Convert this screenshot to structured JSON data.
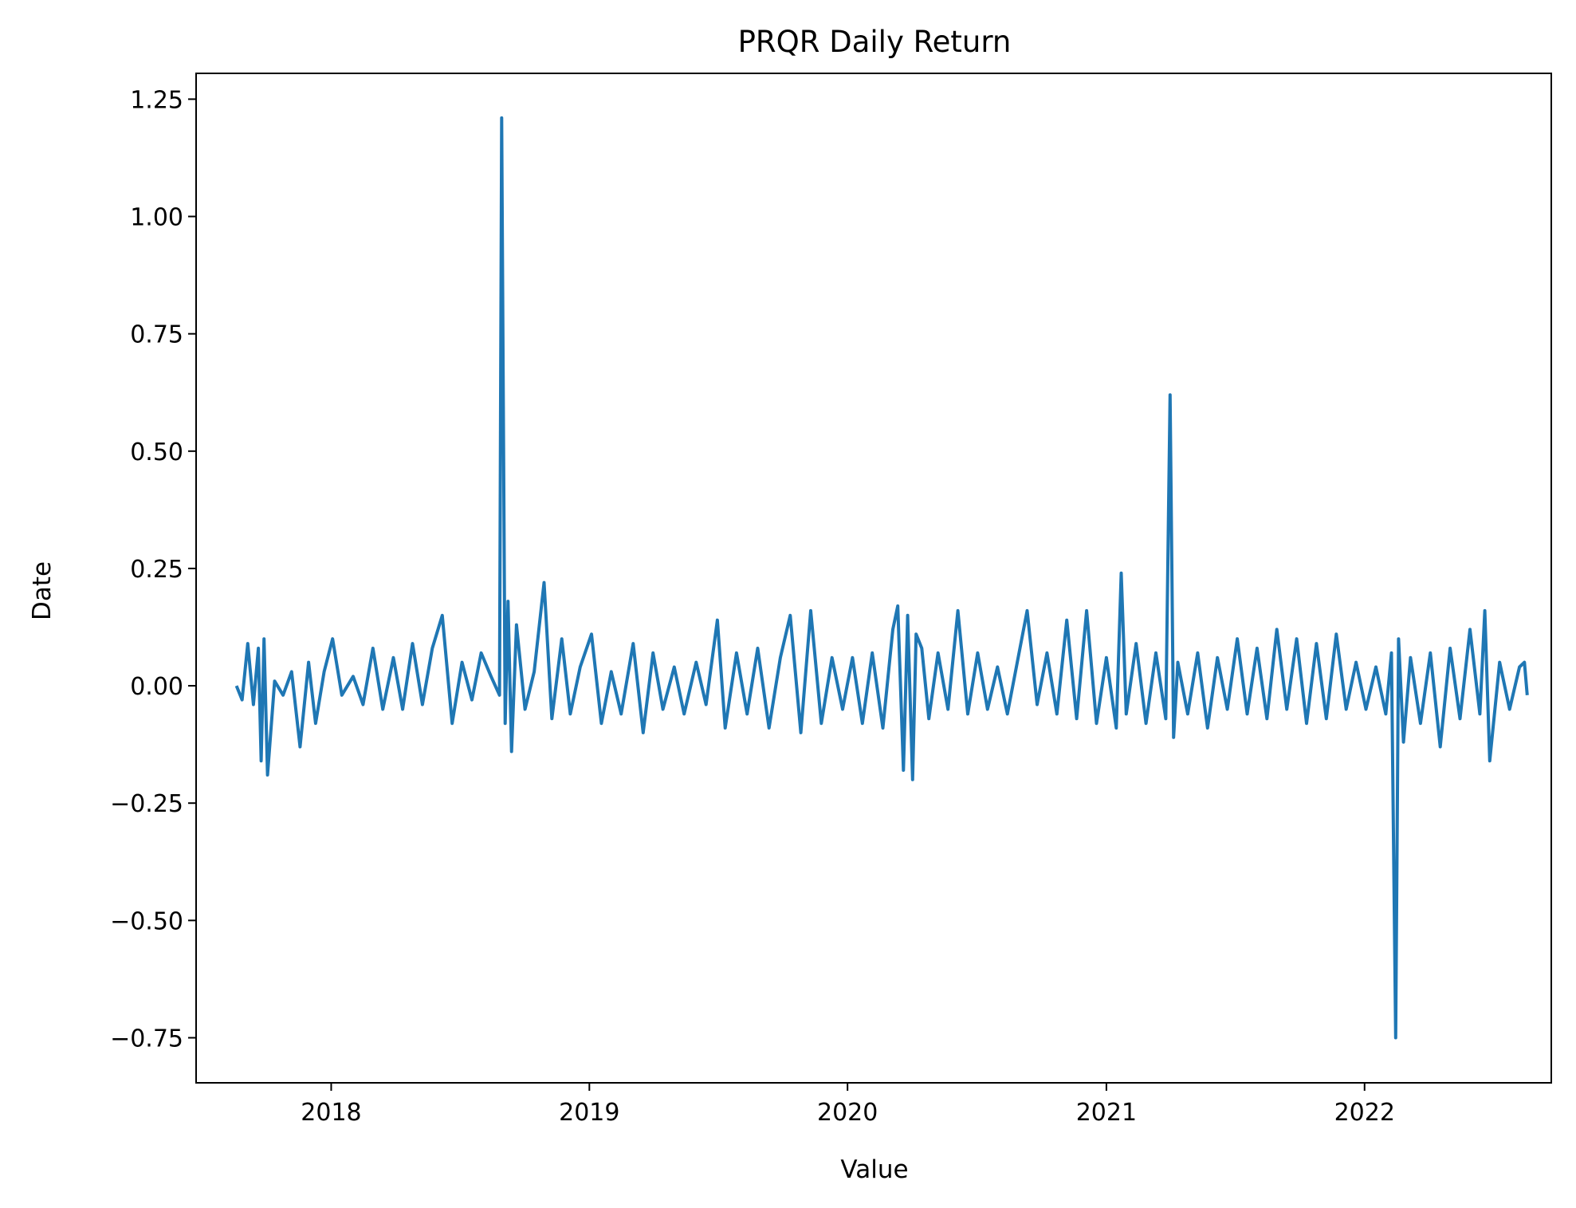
{
  "chart_data": {
    "type": "line",
    "title": "PRQR Daily Return",
    "xlabel": "Value",
    "ylabel": "Date",
    "x_ticks": [
      "2018",
      "2019",
      "2020",
      "2021",
      "2022"
    ],
    "y_ticks": [
      "−0.75",
      "−0.50",
      "−0.25",
      "0.00",
      "0.25",
      "0.50",
      "0.75",
      "1.00",
      "1.25"
    ],
    "y_tick_values": [
      -0.75,
      -0.5,
      -0.25,
      0.0,
      0.25,
      0.5,
      0.75,
      1.0,
      1.25
    ],
    "xlim": [
      "2017-06-24",
      "2022-09-22"
    ],
    "ylim": [
      -0.846,
      1.305
    ],
    "grid": false,
    "legend": "none",
    "line_color": "#1f77b4",
    "series": [
      {
        "x": [
          "2017-08-20",
          "2017-08-28",
          "2017-09-05",
          "2017-09-13",
          "2017-09-20",
          "2017-09-24",
          "2017-09-28",
          "2017-10-03",
          "2017-10-13",
          "2017-10-25",
          "2017-11-06",
          "2017-11-18",
          "2017-11-30",
          "2017-12-10",
          "2017-12-22",
          "2018-01-03",
          "2018-01-16",
          "2018-02-01",
          "2018-02-15",
          "2018-03-01",
          "2018-03-15",
          "2018-03-30",
          "2018-04-12",
          "2018-04-26",
          "2018-05-10",
          "2018-05-24",
          "2018-06-07",
          "2018-06-21",
          "2018-07-05",
          "2018-07-19",
          "2018-08-01",
          "2018-08-15",
          "2018-08-27",
          "2018-08-30",
          "2018-09-04",
          "2018-09-08",
          "2018-09-13",
          "2018-09-20",
          "2018-10-02",
          "2018-10-15",
          "2018-10-29",
          "2018-11-09",
          "2018-11-23",
          "2018-12-05",
          "2018-12-19",
          "2019-01-04",
          "2019-01-18",
          "2019-02-01",
          "2019-02-15",
          "2019-03-04",
          "2019-03-18",
          "2019-04-01",
          "2019-04-15",
          "2019-05-01",
          "2019-05-15",
          "2019-06-01",
          "2019-06-15",
          "2019-07-01",
          "2019-07-12",
          "2019-07-28",
          "2019-08-12",
          "2019-08-27",
          "2019-09-12",
          "2019-09-28",
          "2019-10-12",
          "2019-10-27",
          "2019-11-10",
          "2019-11-25",
          "2019-12-10",
          "2019-12-25",
          "2020-01-08",
          "2020-01-22",
          "2020-02-05",
          "2020-02-20",
          "2020-03-05",
          "2020-03-12",
          "2020-03-20",
          "2020-03-26",
          "2020-04-02",
          "2020-04-07",
          "2020-04-15",
          "2020-04-25",
          "2020-05-08",
          "2020-05-22",
          "2020-06-05",
          "2020-06-19",
          "2020-07-03",
          "2020-07-17",
          "2020-07-31",
          "2020-08-14",
          "2020-08-28",
          "2020-09-11",
          "2020-09-25",
          "2020-10-09",
          "2020-10-23",
          "2020-11-06",
          "2020-11-20",
          "2020-12-04",
          "2020-12-18",
          "2021-01-01",
          "2021-01-15",
          "2021-01-22",
          "2021-01-29",
          "2021-02-12",
          "2021-02-26",
          "2021-03-12",
          "2021-03-26",
          "2021-04-01",
          "2021-04-06",
          "2021-04-12",
          "2021-04-26",
          "2021-05-10",
          "2021-05-24",
          "2021-06-07",
          "2021-06-21",
          "2021-07-05",
          "2021-07-19",
          "2021-08-02",
          "2021-08-16",
          "2021-08-30",
          "2021-09-13",
          "2021-09-27",
          "2021-10-11",
          "2021-10-25",
          "2021-11-08",
          "2021-11-22",
          "2021-12-06",
          "2021-12-20",
          "2022-01-03",
          "2022-01-17",
          "2022-01-31",
          "2022-02-08",
          "2022-02-14",
          "2022-02-18",
          "2022-02-25",
          "2022-03-07",
          "2022-03-21",
          "2022-04-04",
          "2022-04-18",
          "2022-05-02",
          "2022-05-16",
          "2022-05-30",
          "2022-06-13",
          "2022-06-20",
          "2022-06-27",
          "2022-07-11",
          "2022-07-25",
          "2022-08-08",
          "2022-08-15",
          "2022-08-19"
        ],
        "y": [
          0.0,
          -0.03,
          0.09,
          -0.04,
          0.08,
          -0.16,
          0.1,
          -0.19,
          0.01,
          -0.02,
          0.03,
          -0.13,
          0.05,
          -0.08,
          0.03,
          0.1,
          -0.02,
          0.02,
          -0.04,
          0.08,
          -0.05,
          0.06,
          -0.05,
          0.09,
          -0.04,
          0.08,
          0.15,
          -0.08,
          0.05,
          -0.03,
          0.07,
          0.02,
          -0.02,
          1.21,
          -0.08,
          0.18,
          -0.14,
          0.13,
          -0.05,
          0.03,
          0.22,
          -0.07,
          0.1,
          -0.06,
          0.04,
          0.11,
          -0.08,
          0.03,
          -0.06,
          0.09,
          -0.1,
          0.07,
          -0.05,
          0.04,
          -0.06,
          0.05,
          -0.04,
          0.14,
          -0.09,
          0.07,
          -0.06,
          0.08,
          -0.09,
          0.06,
          0.15,
          -0.1,
          0.16,
          -0.08,
          0.06,
          -0.05,
          0.06,
          -0.08,
          0.07,
          -0.09,
          0.12,
          0.17,
          -0.18,
          0.15,
          -0.2,
          0.11,
          0.08,
          -0.07,
          0.07,
          -0.05,
          0.16,
          -0.06,
          0.07,
          -0.05,
          0.04,
          -0.06,
          0.05,
          0.16,
          -0.04,
          0.07,
          -0.06,
          0.14,
          -0.07,
          0.16,
          -0.08,
          0.06,
          -0.09,
          0.24,
          -0.06,
          0.09,
          -0.08,
          0.07,
          -0.07,
          0.62,
          -0.11,
          0.05,
          -0.06,
          0.07,
          -0.09,
          0.06,
          -0.05,
          0.1,
          -0.06,
          0.08,
          -0.07,
          0.12,
          -0.05,
          0.1,
          -0.08,
          0.09,
          -0.07,
          0.11,
          -0.05,
          0.05,
          -0.05,
          0.04,
          -0.06,
          0.07,
          -0.75,
          0.1,
          -0.12,
          0.06,
          -0.08,
          0.07,
          -0.13,
          0.08,
          -0.07,
          0.12,
          -0.06,
          0.16,
          -0.16,
          0.05,
          -0.05,
          0.04,
          0.05,
          -0.02
        ]
      }
    ]
  }
}
